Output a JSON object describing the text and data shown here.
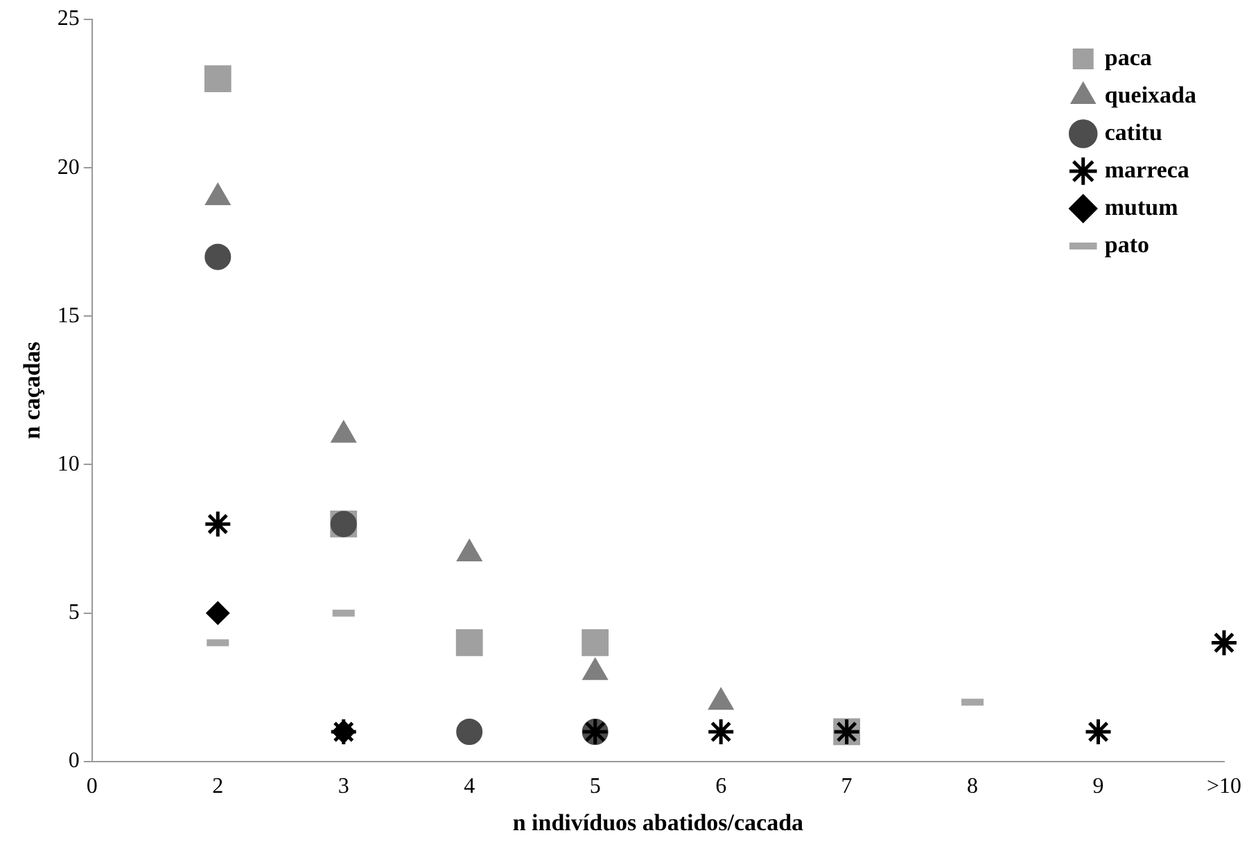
{
  "chart_data": {
    "type": "scatter",
    "xlabel": "n indivíduos abatidos/cacada",
    "ylabel": "n caçadas",
    "categories": [
      "0",
      "2",
      "3",
      "4",
      "5",
      "6",
      "7",
      "8",
      "9",
      ">10"
    ],
    "ylim": [
      0,
      25
    ],
    "yticks": [
      0,
      5,
      10,
      15,
      20,
      25
    ],
    "grid": false,
    "legend": "top right",
    "series": [
      {
        "name": "paca",
        "color": "#a0a0a0",
        "marker": "square",
        "values": [
          null,
          23,
          8,
          4,
          4,
          null,
          1,
          null,
          null,
          null
        ]
      },
      {
        "name": "queixada",
        "color": "#7f7f7f",
        "marker": "triangle",
        "values": [
          null,
          19,
          11,
          7,
          3,
          2,
          null,
          null,
          null,
          null
        ]
      },
      {
        "name": "catitu",
        "color": "#4d4d4d",
        "marker": "circle",
        "values": [
          null,
          17,
          8,
          1,
          1,
          null,
          null,
          null,
          null,
          null
        ]
      },
      {
        "name": "marreca",
        "color": "#000000",
        "marker": "cross",
        "values": [
          null,
          8,
          1,
          null,
          1,
          1,
          1,
          null,
          1,
          4
        ]
      },
      {
        "name": "mutum",
        "color": "#000000",
        "marker": "diamond",
        "values": [
          null,
          5,
          1,
          null,
          null,
          null,
          null,
          null,
          null,
          null
        ]
      },
      {
        "name": "pato",
        "color": "#a6a6a6",
        "values": [
          null,
          4,
          5,
          null,
          null,
          null,
          null,
          2,
          null,
          null
        ]
      }
    ]
  }
}
